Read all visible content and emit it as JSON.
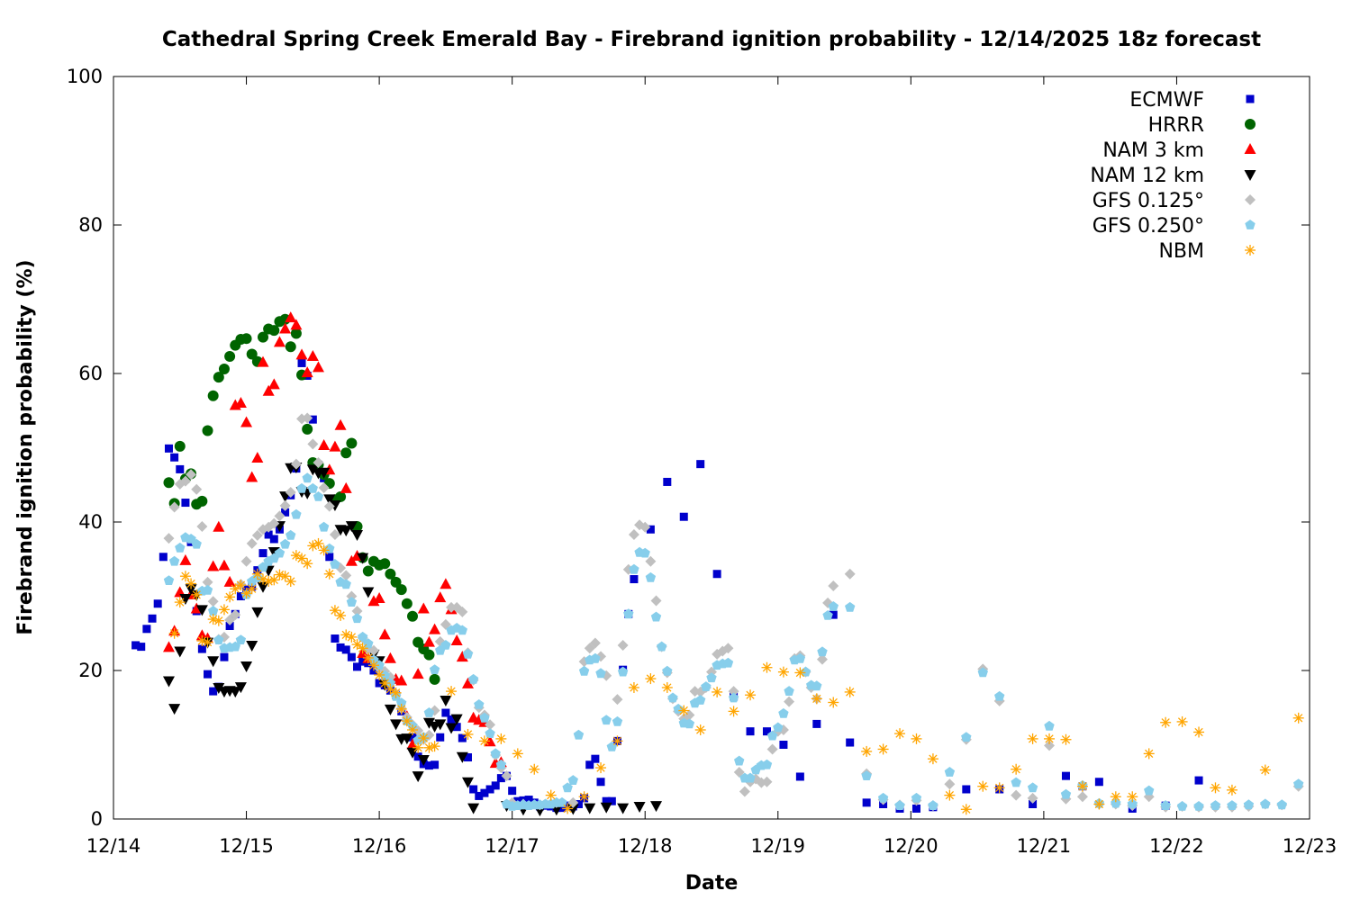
{
  "chart_data": {
    "type": "scatter",
    "title": "Cathedral Spring Creek Emerald Bay - Firebrand ignition probability - 12/14/2025 18z forecast",
    "xlabel": "Date",
    "ylabel": "Firebrand ignition probability (%)",
    "xlim": [
      "12/14 00z",
      "12/23 00z"
    ],
    "ylim": [
      0,
      100
    ],
    "x_ticks": [
      "12/14",
      "12/15",
      "12/16",
      "12/17",
      "12/18",
      "12/19",
      "12/20",
      "12/21",
      "12/22",
      "12/23"
    ],
    "y_ticks": [
      0,
      20,
      40,
      60,
      80,
      100
    ],
    "grid": false,
    "legend_position": "top-right",
    "series": [
      {
        "name": "ECMWF",
        "marker": "square",
        "color": "#0000cc",
        "segments": [
          {
            "from": "12/14 04z",
            "step_hours": 1,
            "values": [
              23.4,
              23.2,
              25.6,
              27,
              29,
              35.3,
              49.9,
              48.7,
              47.1,
              42.6,
              37.3,
              28,
              22.9,
              19.5,
              17.2,
              17.8,
              21.8,
              26,
              27.6,
              30,
              30.9,
              31.3,
              33.5,
              35.8,
              38.3,
              37.7,
              39,
              41.3,
              43.6,
              47.2,
              61.4,
              59.7,
              53.8,
              47.7,
              45.9,
              35.3,
              24.3,
              23.1,
              22.8,
              21.8,
              20.5,
              21.2,
              21,
              20,
              18.3,
              18,
              17.3,
              16.7,
              14.5,
              13.3,
              11,
              8.4,
              7.4,
              7.2,
              7.3,
              11,
              14.3,
              13.4,
              12.4,
              10.9,
              8.3,
              4,
              3.1,
              3.5,
              4,
              4.5,
              5.5,
              5.8,
              3.8,
              2.4,
              2.5,
              2.6,
              2.2,
              1.7,
              1.8,
              1.7,
              1.5,
              1.5,
              1.8,
              1.7,
              2,
              2.8,
              7.3,
              8.1,
              5,
              2.4,
              2.4,
              10.5,
              20.1,
              27.6,
              32.3
            ]
          },
          {
            "from": "12/18 01z",
            "step_hours": 3,
            "values": [
              39,
              45.4,
              40.7,
              47.8,
              33,
              16.5,
              11.8,
              11.8,
              10,
              5.7,
              12.8,
              27.5,
              10.3,
              2.2,
              2,
              1.4,
              1.4,
              1.6,
              null,
              4,
              null,
              4,
              null,
              2,
              null,
              5.8,
              4.4,
              5,
              null,
              1.4,
              null,
              1.8,
              null,
              5.2
            ]
          }
        ]
      },
      {
        "name": "HRRR",
        "marker": "circle",
        "color": "#006400",
        "segments": [
          {
            "from": "12/14 10z",
            "step_hours": 1,
            "values": [
              45.3,
              42.5,
              50.2,
              45.8,
              46.5,
              42.4,
              42.8,
              52.3,
              57,
              59.5,
              60.6,
              62.3,
              63.8,
              64.6,
              64.7,
              62.6,
              61.6,
              64.9,
              66,
              65.8,
              67,
              67.3,
              63.6,
              65.4,
              59.8,
              52.5,
              48,
              47.7,
              46.4,
              45.2,
              43,
              43.4,
              49.3,
              50.6,
              39.4,
              35.2,
              33.4,
              34.7,
              34.2,
              34.4,
              33,
              31.9,
              30.9,
              29,
              27.3,
              23.8,
              22.9,
              22.1,
              18.8
            ]
          }
        ]
      },
      {
        "name": "NAM 3 km",
        "marker": "triangle-up",
        "color": "#ff0000",
        "segments": [
          {
            "from": "12/14 10z",
            "step_hours": 1,
            "values": [
              23.1,
              25.3,
              30.5,
              34.8,
              30.2,
              28.3,
              24.7,
              24.3,
              34,
              39.3,
              34.1,
              31.9,
              55.7,
              56,
              53.4,
              46,
              48.6,
              61.5,
              57.6,
              58.5,
              64.2,
              66,
              67.5,
              66.5,
              62.5,
              60.1,
              62.3,
              60.8,
              50.3,
              47,
              50.1,
              53,
              44.5,
              34.7,
              35.4,
              22.3,
              21.6,
              29.3,
              29.7,
              24.8,
              21.6,
              18.8,
              18.6,
              13.8,
              10,
              19.5,
              28.3,
              23.8,
              25.5,
              29.8,
              31.6,
              28.2,
              24,
              21.8,
              18.2,
              13.6,
              13.3,
              13,
              10.4,
              7.5,
              7.6
            ]
          }
        ]
      },
      {
        "name": "NAM 12 km",
        "marker": "triangle-down",
        "color": "#000000",
        "segments": [
          {
            "from": "12/14 10z",
            "step_hours": 1,
            "values": [
              18.6,
              14.9,
              22.6,
              29.7,
              31,
              30.2,
              28.2,
              23.8,
              21.3,
              17.7,
              17.2,
              17.3,
              17.2,
              17.8,
              20.6,
              23.4,
              27.9,
              31.3,
              33.5,
              36,
              39.5,
              43.5,
              47.3,
              47.4,
              44.1,
              43.9,
              47.1,
              46.6,
              46.7,
              43.1,
              42.3,
              39,
              38.9,
              39.5,
              38.3,
              35.2,
              30.6,
              22.2,
              21.3,
              18.1,
              14.8,
              12.8,
              10.8,
              10.9,
              9,
              5.8,
              8,
              13,
              12.5,
              12.8,
              16,
              12.3,
              13.5,
              8.4,
              5,
              1.5
            ]
          },
          {
            "from": "12/16 23z",
            "step_hours": 3,
            "values": [
              1.8,
              1.3,
              1.2,
              1.3,
              1.4,
              1.5,
              1.6,
              1.5,
              1.7,
              1.8
            ]
          }
        ]
      },
      {
        "name": "GFS 0.125°",
        "marker": "diamond",
        "color": "#c0c0c0",
        "segments": [
          {
            "from": "12/14 10z",
            "step_hours": 1,
            "values": [
              37.8,
              42,
              45.1,
              45.5,
              46.4,
              44.4,
              39.4,
              31.9,
              29.3,
              24.2,
              24.5,
              26.8,
              27.5,
              31.6,
              34.7,
              37.1,
              38.2,
              39,
              39.3,
              39.8,
              40.8,
              42.2,
              44,
              47.8,
              53.9,
              54,
              50.5,
              48,
              44.6,
              42.1,
              38.3,
              33.8,
              32.8,
              30,
              28,
              24.4,
              22.8,
              22.7,
              20.3,
              19.9,
              19.1,
              16.9,
              14.9,
              13.7,
              12.7,
              11.9,
              10.7,
              11.3,
              14.6,
              23.9,
              26.2,
              28.5,
              28.5,
              27.9,
              22.4,
              18.7,
              15,
              14,
              12.7,
              8.6,
              6.9,
              5.8,
              2.2
            ]
          },
          {
            "from": "12/17 02z",
            "step_hours": 3,
            "values": [
              2,
              1.9,
              2.2,
              2.2
            ]
          },
          {
            "from": "12/17 13z",
            "step_hours": 1,
            "values": [
              21.2,
              23,
              23.7,
              21.9,
              19.3,
              null,
              16.1,
              23.4,
              33.6,
              38.3,
              39.6,
              39.3,
              34.7,
              29.4,
              23.2,
              19.7,
              16.2,
              14.5,
              13.5,
              14,
              17.2,
              17.1,
              17.7,
              19.8,
              22.2,
              22.6,
              23,
              17.2,
              6.3,
              3.7,
              5,
              5.4,
              4.9,
              5,
              9.4,
              11.8,
              12,
              15.8,
              21.6,
              22,
              19.8,
              17.7,
              16.2,
              21.5,
              29.1,
              31.4
            ]
          },
          {
            "from": "12/19 13z",
            "step_hours": 3,
            "values": [
              33,
              6.1,
              2.6,
              1.9,
              2.5,
              1.8,
              4.7,
              10.7,
              20.2,
              15.9,
              3.2,
              2.8,
              9.9,
              2.7,
              3,
              2,
              2,
              1.8,
              3,
              1.6,
              1.7,
              1.6,
              1.6,
              1.6,
              1.7,
              2,
              1.9,
              4.4
            ]
          }
        ]
      },
      {
        "name": "GFS 0.250°",
        "marker": "pentagon",
        "color": "#87ceeb",
        "segments": [
          {
            "from": "12/14 10z",
            "step_hours": 1,
            "values": [
              32.1,
              34.7,
              36.5,
              37.9,
              37.7,
              37,
              30.7,
              30.8,
              28,
              24.1,
              23,
              23.1,
              23.2,
              24.1,
              30.2,
              32,
              32.5,
              33.9,
              34.7,
              35.1,
              35.8,
              37,
              38.2,
              41,
              44.5,
              45.9,
              44.5,
              43.4,
              39.3,
              36.4,
              34.3,
              31.9,
              31.6,
              29.2,
              27,
              24.5,
              23.6,
              21.4,
              20.7,
              19.3,
              18.3,
              16.5,
              15.6,
              13.2,
              12.5,
              10.6,
              11,
              14.3,
              20.1,
              22.7,
              23.4,
              25.4,
              25.7,
              25.4,
              22.2,
              18.8,
              15.4,
              13.6,
              11.5,
              8.8,
              7.3,
              2,
              1.7,
              1.8,
              1.9,
              1.8,
              1.9,
              1.9,
              2,
              2,
              2.2,
              2.2,
              4.2,
              5.2,
              11.3,
              19.9,
              21.4,
              21.6,
              19.6,
              13.3,
              9.7,
              13.1,
              19.8,
              27.6,
              33.6,
              35.9,
              35.8,
              32.5,
              27.2,
              23.2,
              19.9,
              16.3,
              14.8,
              12.9,
              12.8,
              15.6,
              16,
              17.8,
              19,
              20.7,
              20.9,
              21,
              16.3,
              7.8,
              5.5,
              5.5,
              6.6,
              7.2,
              7.3,
              11.2,
              12.3,
              14.2,
              17.2,
              21.4,
              21.6,
              19.8,
              18,
              17.9,
              22.5,
              27.4,
              28.6
            ]
          },
          {
            "from": "12/19 13z",
            "step_hours": 3,
            "values": [
              28.5,
              5.8,
              2.8,
              1.8,
              2.8,
              1.8,
              6.3,
              11,
              19.7,
              16.5,
              4.9,
              4.2,
              12.5,
              3.3,
              4.5,
              2.1,
              2.1,
              2,
              3.8,
              1.8,
              1.7,
              1.7,
              1.8,
              1.8,
              1.9,
              2,
              1.9,
              4.7
            ]
          }
        ]
      },
      {
        "name": "NBM",
        "marker": "asterisk",
        "color": "#ffa500",
        "segments": [
          {
            "from": "12/14 11z",
            "step_hours": 1,
            "values": [
              25,
              29.2,
              32.7,
              31.7,
              30.2,
              24,
              23.8,
              26.9,
              26.7,
              28.2,
              29.9,
              31,
              31.5,
              30.4,
              31,
              33,
              32.3,
              32,
              32.2,
              32.9,
              32.7,
              32,
              35.5,
              35.1,
              34.4,
              36.8,
              37.1,
              36.2,
              33,
              28.1,
              27.4,
              24.8,
              24.5,
              23.5,
              23,
              21.7,
              20.7,
              19.4,
              18.3,
              17.5,
              17,
              14.8,
              13.2,
              12,
              9.6,
              10.9,
              9.6,
              9.8
            ]
          },
          {
            "from": "12/16 13z",
            "step_hours": 3,
            "values": [
              17.2,
              11.4,
              10.5,
              10.8,
              8.8,
              6.7,
              3.2,
              1.4,
              3,
              6.9,
              10.5,
              17.7,
              18.9,
              17.7,
              14.6,
              12,
              17.1,
              14.5,
              16.7,
              20.4,
              19.8,
              19.7,
              16.2,
              15.7,
              17.1,
              9.1,
              9.4,
              11.5,
              10.8,
              8.1,
              3.2,
              1.3,
              4.4,
              4.2,
              6.7,
              10.8,
              10.8,
              10.7,
              4.4,
              2,
              3,
              3,
              8.8,
              13,
              13.1,
              11.7,
              4.2,
              3.9,
              null,
              6.6,
              null,
              13.6
            ]
          }
        ]
      }
    ]
  }
}
